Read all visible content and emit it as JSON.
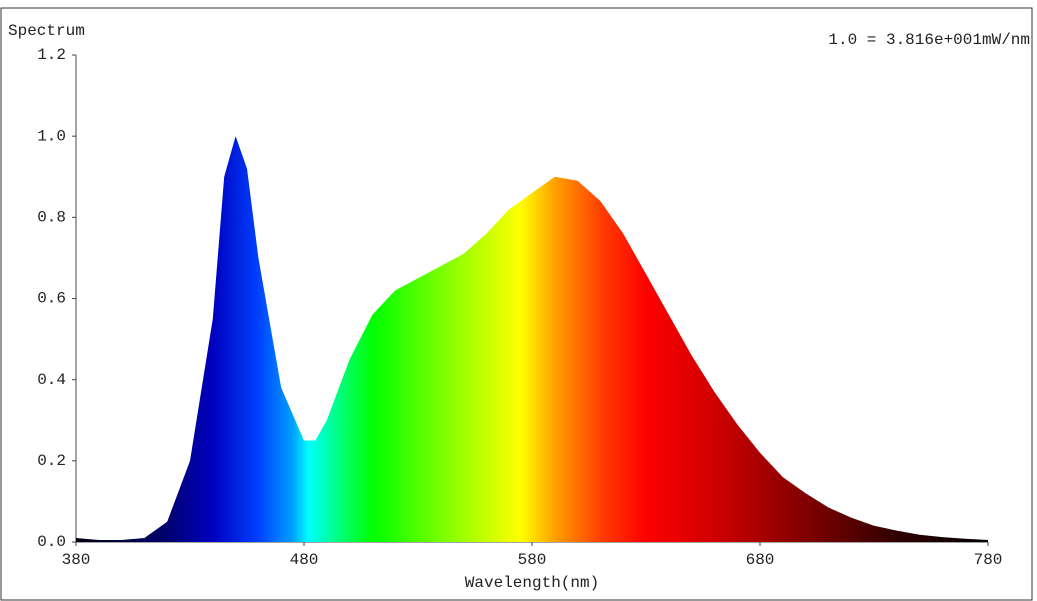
{
  "chart_data": {
    "type": "area",
    "title": "Spectrum",
    "annotation": "1.0 = 3.816e+001mW/nm",
    "x_label": "Wavelength(nm)",
    "x": [
      380,
      390,
      400,
      410,
      420,
      430,
      440,
      445,
      450,
      455,
      460,
      470,
      480,
      485,
      490,
      500,
      510,
      520,
      530,
      540,
      550,
      560,
      570,
      580,
      590,
      600,
      610,
      620,
      630,
      640,
      650,
      660,
      670,
      680,
      690,
      700,
      710,
      720,
      730,
      740,
      750,
      760,
      770,
      780
    ],
    "values": [
      0.01,
      0.005,
      0.005,
      0.01,
      0.05,
      0.2,
      0.55,
      0.9,
      1.0,
      0.92,
      0.7,
      0.38,
      0.25,
      0.25,
      0.3,
      0.45,
      0.56,
      0.62,
      0.65,
      0.68,
      0.71,
      0.76,
      0.82,
      0.86,
      0.9,
      0.89,
      0.84,
      0.76,
      0.66,
      0.56,
      0.46,
      0.37,
      0.29,
      0.22,
      0.16,
      0.12,
      0.085,
      0.06,
      0.04,
      0.028,
      0.018,
      0.012,
      0.008,
      0.005
    ],
    "xlim": [
      380,
      780
    ],
    "xticks": [
      380,
      480,
      580,
      680,
      780
    ],
    "ylim": [
      0,
      1.2
    ],
    "yticks": [
      {
        "value": 0,
        "label": "0.0"
      },
      0.2,
      0.4,
      0.6,
      0.8,
      {
        "value": 1,
        "label": "1.0"
      },
      1.2
    ],
    "grid": false
  }
}
